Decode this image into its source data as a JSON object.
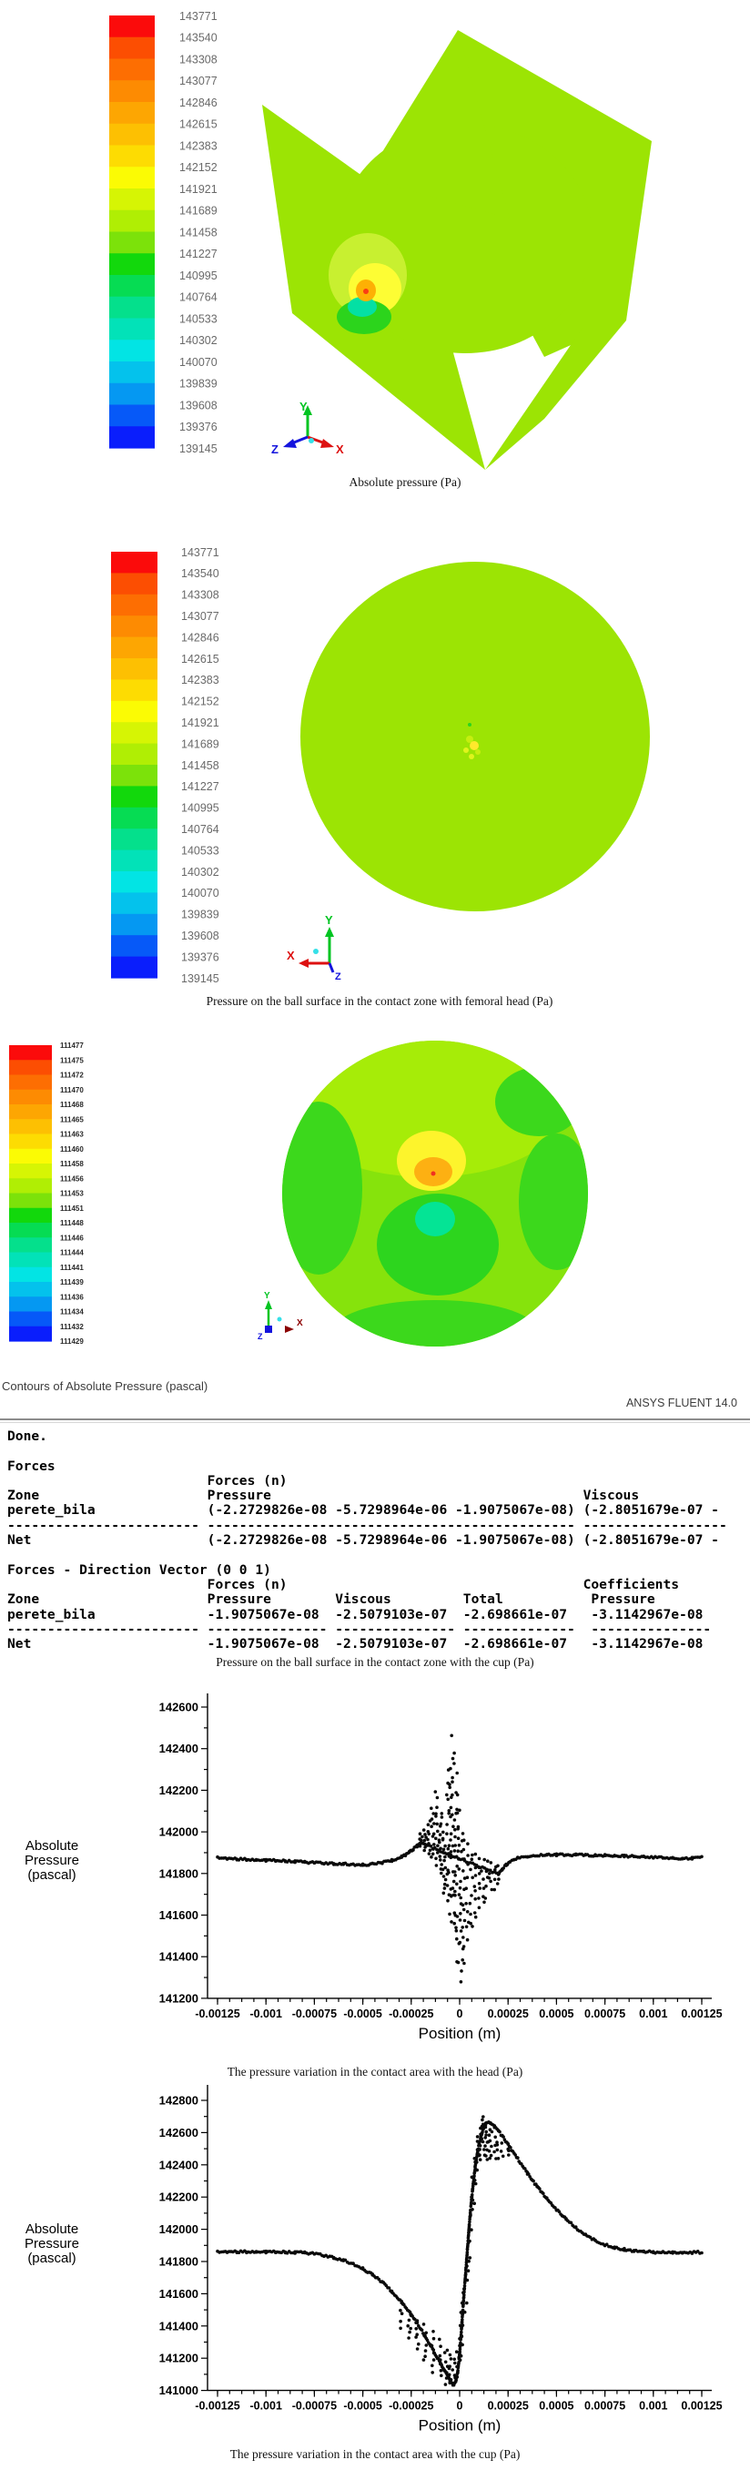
{
  "colors": {
    "contour_lime": "#9ce404",
    "fig3_base": "#86e30c",
    "fig3_light": "#a6ec08",
    "fig3_green_patch": "#3cd81c",
    "fig3_green_blob": "#2dd51e",
    "fig3_teal": "#04e495",
    "fig3_yellow": "#fdf42c",
    "fig3_orange": "#fdb012",
    "fig3_red_dot": "#f03020",
    "fig3_edge_yellow": "#ffe93a",
    "spot_outer": "#c8f030",
    "spot_yellow": "#fdfd34",
    "spot_orange": "#fdb004",
    "spot_red": "#fa3c14",
    "spot_teal": "#04e0a4",
    "spot_green": "#2cd41c",
    "speckle1": "#c6ee10",
    "speckle2": "#ffe92c",
    "speckle3": "#e0f41c",
    "axis_x": "#dd1111",
    "axis_y": "#00c421",
    "axis_z": "#1414dd",
    "axis_origin_dot": "#35e0e8",
    "colorbar_label": "#6a6a6a",
    "scatter_dot": "#0a0a0a"
  },
  "colorbar_band_colors": [
    "#fb0b0b",
    "#fc4e02",
    "#fd6e02",
    "#fd8b02",
    "#fda602",
    "#fdc002",
    "#fddc02",
    "#fbfb04",
    "#d6f504",
    "#b0ee04",
    "#7ce20a",
    "#12d80c",
    "#06dc53",
    "#04e08c",
    "#02e2b8",
    "#02e4e4",
    "#04c2ec",
    "#0598f2",
    "#0659f8",
    "#0a1efc"
  ],
  "colorbar_pa": {
    "values": [
      "143771",
      "143540",
      "143308",
      "143077",
      "142846",
      "142615",
      "142383",
      "142152",
      "141921",
      "141689",
      "141458",
      "141227",
      "140995",
      "140764",
      "140533",
      "140302",
      "140070",
      "139839",
      "139608",
      "139376",
      "139145"
    ]
  },
  "colorbar_fig3": {
    "values": [
      "111477",
      "111475",
      "111472",
      "111470",
      "111468",
      "111465",
      "111463",
      "111460",
      "111458",
      "111456",
      "111453",
      "111451",
      "111448",
      "111446",
      "111444",
      "111441",
      "111439",
      "111436",
      "111434",
      "111432",
      "111429"
    ]
  },
  "fig1": {
    "caption": "Absolute pressure (Pa)",
    "triad": {
      "x": "X",
      "y": "Y",
      "z": "Z"
    }
  },
  "fig2": {
    "caption": "Pressure on the ball surface in the contact zone with femoral head (Pa)",
    "triad": {
      "x": "X",
      "y": "Y",
      "z": "Z"
    }
  },
  "fig3": {
    "caption": "Contours of Absolute Pressure (pascal)",
    "watermark": "ANSYS FLUENT 14.0",
    "triad": {
      "x": "X",
      "y": "Y",
      "z": "Z"
    }
  },
  "console": {
    "lines": [
      "Done.",
      "",
      "Forces",
      "                         Forces (n)",
      "Zone                     Pressure                                       Viscous",
      "perete_bila              (-2.2729826e-08 -5.7298964e-06 -1.9075067e-08) (-2.8051679e-07 -",
      "------------------------ ---------------------------------------------- ------------------",
      "Net                      (-2.2729826e-08 -5.7298964e-06 -1.9075067e-08) (-2.8051679e-07 -",
      "",
      "Forces - Direction Vector (0 0 1)",
      "                         Forces (n)                                     Coefficients",
      "Zone                     Pressure        Viscous         Total           Pressure",
      "perete_bila              -1.9075067e-08  -2.5079103e-07  -2.698661e-07   -3.1142967e-08",
      "------------------------ --------------- --------------- --------------  ---------------",
      "Net                      -1.9075067e-08  -2.5079103e-07  -2.698661e-07   -3.1142967e-08"
    ],
    "caption": "Pressure on the ball surface in the contact zone with the cup (Pa)"
  },
  "chart_data": [
    {
      "type": "scatter",
      "title": "",
      "xlabel": "Position (m)",
      "ylabel_lines": [
        "Absolute",
        "Pressure",
        "(pascal)"
      ],
      "caption": "The pressure variation in the contact area with the head (Pa)",
      "xlim": [
        -0.00125,
        0.00125
      ],
      "ylim": [
        141200,
        142600
      ],
      "xticks": [
        -0.00125,
        -0.001,
        -0.00075,
        -0.0005,
        -0.00025,
        0,
        0.00025,
        0.0005,
        0.00075,
        0.001,
        0.00125
      ],
      "xtick_labels": [
        "-0.00125",
        "-0.001",
        "-0.00075",
        "-0.0005",
        "-0.00025",
        "0",
        "0.00025",
        "0.0005",
        "0.00075",
        "0.001",
        "0.00125"
      ],
      "ytick_labels": [
        "142600",
        "142400",
        "142200",
        "142000",
        "141800",
        "141600",
        "141400",
        "141200"
      ],
      "yticks": [
        142600,
        142400,
        142200,
        142000,
        141800,
        141600,
        141400,
        141200
      ],
      "baseline": [
        [
          -0.00125,
          141876
        ],
        [
          -0.0012,
          141872
        ],
        [
          -0.00115,
          141870
        ],
        [
          -0.0011,
          141868
        ],
        [
          -0.00105,
          141866
        ],
        [
          -0.001,
          141864
        ],
        [
          -0.00095,
          141862
        ],
        [
          -0.0009,
          141860
        ],
        [
          -0.00085,
          141858
        ],
        [
          -0.0008,
          141855
        ],
        [
          -0.00075,
          141852
        ],
        [
          -0.0007,
          141850
        ],
        [
          -0.00065,
          141848
        ],
        [
          -0.0006,
          141846
        ],
        [
          -0.00055,
          141844
        ],
        [
          -0.0005,
          141842
        ],
        [
          -0.00045,
          141845
        ],
        [
          -0.0004,
          141852
        ],
        [
          -0.00035,
          141863
        ],
        [
          -0.0003,
          141880
        ],
        [
          -0.00028,
          141890
        ],
        [
          -0.00026,
          141902
        ],
        [
          -0.00024,
          141916
        ],
        [
          -0.00022,
          141932
        ],
        [
          -0.0002,
          141948
        ],
        [
          0.0002,
          141795
        ],
        [
          0.00022,
          141820
        ],
        [
          0.00024,
          141842
        ],
        [
          0.00026,
          141857
        ],
        [
          0.00028,
          141866
        ],
        [
          0.0003,
          141873
        ],
        [
          0.00035,
          141882
        ],
        [
          0.0004,
          141886
        ],
        [
          0.00045,
          141889
        ],
        [
          0.0005,
          141890
        ],
        [
          0.00055,
          141890
        ],
        [
          0.0006,
          141889
        ],
        [
          0.00065,
          141888
        ],
        [
          0.0007,
          141887
        ],
        [
          0.00075,
          141886
        ],
        [
          0.0008,
          141885
        ],
        [
          0.00085,
          141884
        ],
        [
          0.0009,
          141883
        ],
        [
          0.00095,
          141881
        ],
        [
          0.001,
          141879
        ],
        [
          0.00105,
          141877
        ],
        [
          0.0011,
          141875
        ],
        [
          0.00115,
          141873
        ],
        [
          0.0012,
          141874
        ],
        [
          0.00125,
          141878
        ]
      ],
      "cluster_columns": [
        [
          -0.0002,
          141930,
          141995,
          6
        ],
        [
          -0.00018,
          141900,
          142015,
          8
        ],
        [
          -0.00016,
          141880,
          142060,
          9
        ],
        [
          -0.00014,
          141860,
          142130,
          11
        ],
        [
          -0.00012,
          141830,
          142205,
          12
        ],
        [
          -0.0001,
          141780,
          142110,
          13
        ],
        [
          -8e-05,
          141705,
          142005,
          15
        ],
        [
          -6e-05,
          141645,
          142260,
          15
        ],
        [
          -5e-05,
          141600,
          142350,
          12
        ],
        [
          -4e-05,
          141560,
          142490,
          13
        ],
        [
          -3e-05,
          141500,
          142420,
          12
        ],
        [
          -2e-05,
          141450,
          142300,
          13
        ],
        [
          -1e-05,
          141350,
          142220,
          12
        ],
        [
          0,
          141255,
          142150,
          12
        ],
        [
          1e-05,
          141300,
          142050,
          11
        ],
        [
          2e-05,
          141350,
          141995,
          11
        ],
        [
          4e-05,
          141450,
          141950,
          10
        ],
        [
          6e-05,
          141505,
          141930,
          9
        ],
        [
          8e-05,
          141560,
          141905,
          8
        ],
        [
          0.0001,
          141620,
          141890,
          7
        ],
        [
          0.00012,
          141650,
          141880,
          6
        ],
        [
          0.00014,
          141680,
          141872,
          5
        ],
        [
          0.00016,
          141702,
          141864,
          5
        ],
        [
          0.00018,
          141722,
          141856,
          4
        ],
        [
          0.0002,
          141742,
          141848,
          4
        ]
      ]
    },
    {
      "type": "scatter",
      "title": "",
      "xlabel": "Position (m)",
      "ylabel_lines": [
        "Absolute",
        "Pressure",
        "(pascal)"
      ],
      "caption": "The pressure variation in the contact area with the cup (Pa)",
      "xlim": [
        -0.00125,
        0.00125
      ],
      "ylim": [
        141000,
        142800
      ],
      "xticks": [
        -0.00125,
        -0.001,
        -0.00075,
        -0.0005,
        -0.00025,
        0,
        0.00025,
        0.0005,
        0.00075,
        0.001,
        0.00125
      ],
      "xtick_labels": [
        "-0.00125",
        "-0.001",
        "-0.00075",
        "-0.0005",
        "-0.00025",
        "0",
        "0.00025",
        "0.0005",
        "0.00075",
        "0.001",
        "0.00125"
      ],
      "ytick_labels": [
        "142800",
        "142600",
        "142400",
        "142200",
        "142000",
        "141800",
        "141600",
        "141400",
        "141200",
        "141000"
      ],
      "yticks": [
        142800,
        142600,
        142400,
        142200,
        142000,
        141800,
        141600,
        141400,
        141200,
        141000
      ],
      "baseline": [
        [
          -0.00125,
          141860
        ],
        [
          -0.0012,
          141860
        ],
        [
          -0.00115,
          141861
        ],
        [
          -0.0011,
          141861
        ],
        [
          -0.00105,
          141861
        ],
        [
          -0.001,
          141860
        ],
        [
          -0.00095,
          141859
        ],
        [
          -0.0009,
          141858
        ],
        [
          -0.00085,
          141857
        ],
        [
          -0.0008,
          141855
        ],
        [
          -0.00075,
          141848
        ],
        [
          -0.0007,
          141838
        ],
        [
          -0.00065,
          141825
        ],
        [
          -0.0006,
          141808
        ],
        [
          -0.00055,
          141786
        ],
        [
          -0.0005,
          141756
        ],
        [
          -0.00045,
          141718
        ],
        [
          -0.0004,
          141672
        ],
        [
          -0.00035,
          141615
        ],
        [
          -0.0003,
          141548
        ],
        [
          -0.00025,
          141470
        ],
        [
          -0.0002,
          141380
        ],
        [
          -0.00015,
          141278
        ],
        [
          -0.0001,
          141170
        ],
        [
          -8e-05,
          141128
        ],
        [
          -6e-05,
          141088
        ],
        [
          -5e-05,
          141062
        ],
        [
          -4e-05,
          141042
        ],
        [
          -3e-05,
          141035
        ],
        [
          -2e-05,
          141055
        ],
        [
          -1e-05,
          141110
        ],
        [
          0,
          141230
        ],
        [
          1e-05,
          141390
        ],
        [
          2e-05,
          141555
        ],
        [
          3e-05,
          141715
        ],
        [
          4e-05,
          141875
        ],
        [
          5e-05,
          142030
        ],
        [
          6e-05,
          142165
        ],
        [
          7e-05,
          142285
        ],
        [
          8e-05,
          142385
        ],
        [
          9e-05,
          142462
        ],
        [
          0.0001,
          142528
        ],
        [
          0.00011,
          142578
        ],
        [
          0.00012,
          142618
        ],
        [
          0.00013,
          142648
        ],
        [
          0.00014,
          142664
        ],
        [
          0.00015,
          142668
        ],
        [
          0.00016,
          142660
        ],
        [
          0.00018,
          142638
        ],
        [
          0.0002,
          142610
        ],
        [
          0.00022,
          142578
        ],
        [
          0.00025,
          142528
        ],
        [
          0.0003,
          142438
        ],
        [
          0.00035,
          142348
        ],
        [
          0.0004,
          142264
        ],
        [
          0.00045,
          142190
        ],
        [
          0.0005,
          142122
        ],
        [
          0.00055,
          142062
        ],
        [
          0.0006,
          142010
        ],
        [
          0.00065,
          141966
        ],
        [
          0.0007,
          141930
        ],
        [
          0.00075,
          141904
        ],
        [
          0.0008,
          141886
        ],
        [
          0.00085,
          141875
        ],
        [
          0.0009,
          141867
        ],
        [
          0.00095,
          141862
        ],
        [
          0.001,
          141858
        ],
        [
          0.00105,
          141856
        ],
        [
          0.0011,
          141855
        ],
        [
          0.00115,
          141855
        ],
        [
          0.0012,
          141856
        ],
        [
          0.00125,
          141858
        ]
      ],
      "cluster_columns": [
        [
          -0.0003,
          141380,
          141560,
          5
        ],
        [
          -0.00026,
          141300,
          141500,
          6
        ],
        [
          -0.00022,
          141230,
          141450,
          6
        ],
        [
          -0.00018,
          141160,
          141420,
          7
        ],
        [
          -0.00014,
          141100,
          141380,
          7
        ],
        [
          -0.0001,
          141060,
          141330,
          7
        ],
        [
          -7e-05,
          141035,
          141280,
          7
        ],
        [
          -5e-05,
          141030,
          141230,
          7
        ],
        [
          -3e-05,
          141040,
          141200,
          6
        ],
        [
          -1e-05,
          141080,
          141260,
          5
        ],
        [
          0,
          141150,
          141350,
          4
        ],
        [
          1e-05,
          141250,
          141500,
          4
        ],
        [
          2e-05,
          141380,
          141650,
          4
        ],
        [
          3e-05,
          141520,
          141800,
          4
        ],
        [
          4e-05,
          141650,
          141950,
          4
        ],
        [
          5e-05,
          141800,
          142100,
          4
        ],
        [
          6e-05,
          141950,
          142250,
          4
        ],
        [
          7e-05,
          142100,
          142380,
          4
        ],
        [
          8e-05,
          142250,
          142480,
          5
        ],
        [
          9e-05,
          142350,
          142560,
          5
        ],
        [
          0.0001,
          142420,
          142640,
          6
        ],
        [
          0.00011,
          142460,
          142690,
          6
        ],
        [
          0.00012,
          142470,
          142705,
          6
        ],
        [
          0.00013,
          142460,
          142690,
          6
        ],
        [
          0.00014,
          142440,
          142670,
          5
        ],
        [
          0.00015,
          142420,
          142650,
          5
        ],
        [
          0.00016,
          142400,
          142630,
          5
        ],
        [
          0.00018,
          142420,
          142600,
          4
        ],
        [
          0.0002,
          142430,
          142570,
          4
        ],
        [
          0.00022,
          142440,
          142540,
          3
        ],
        [
          0.00025,
          142450,
          142520,
          3
        ]
      ]
    }
  ]
}
